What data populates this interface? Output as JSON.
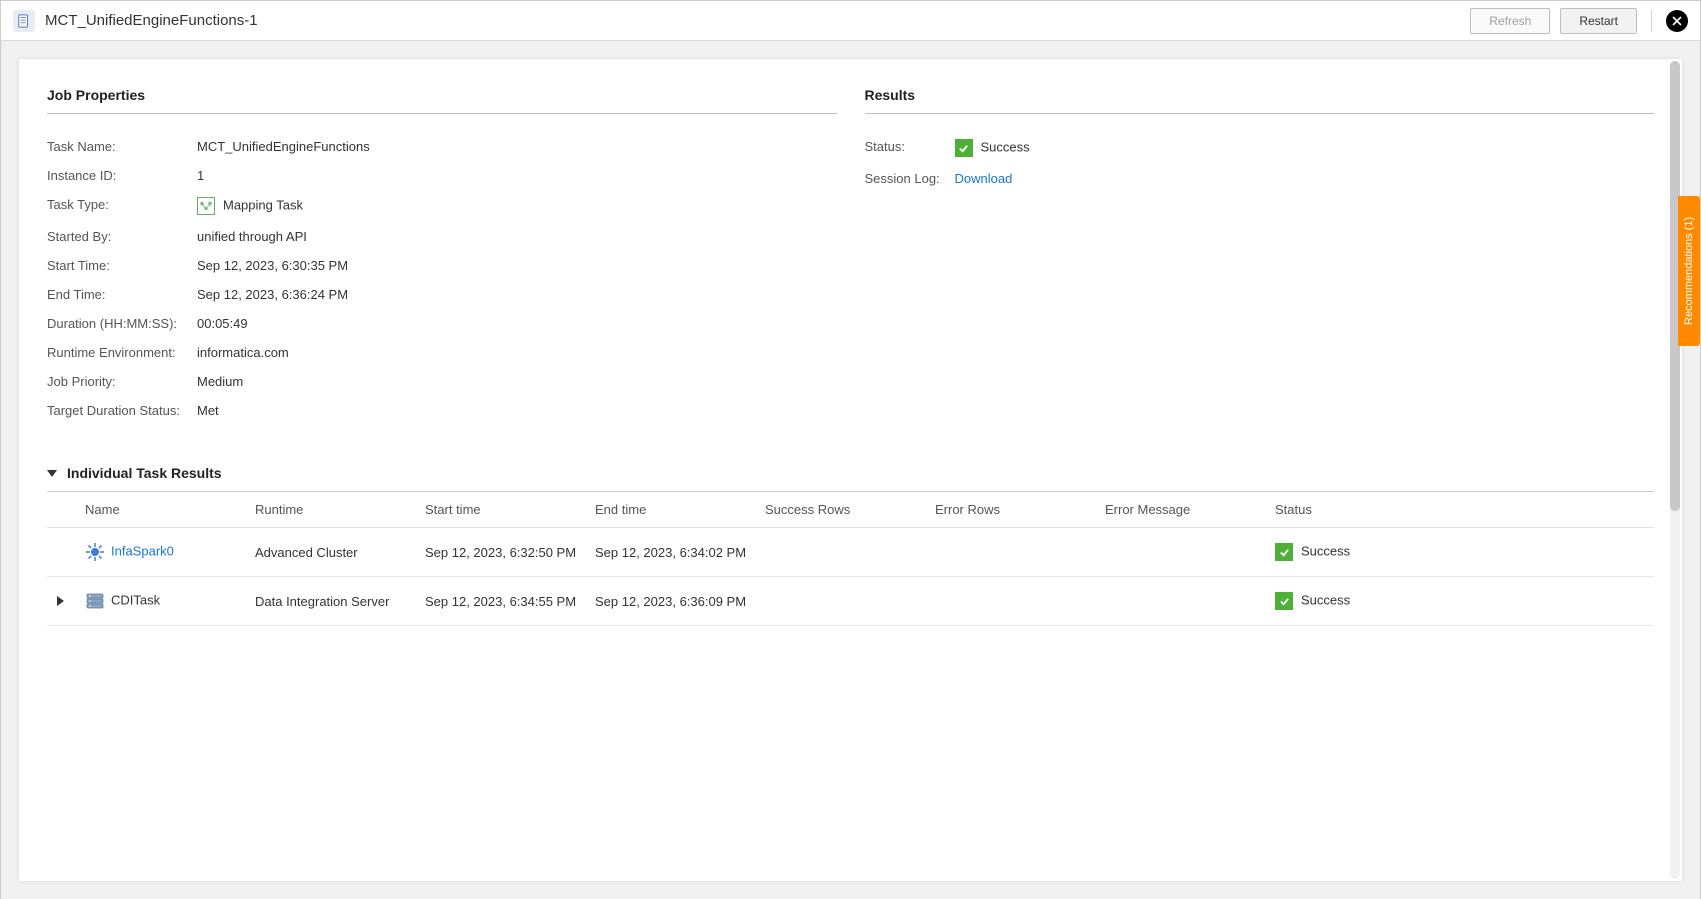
{
  "header": {
    "title": "MCT_UnifiedEngineFunctions-1",
    "refresh_label": "Refresh",
    "restart_label": "Restart"
  },
  "recommendations_label": "Recommendations (1)",
  "job_properties": {
    "title": "Job Properties",
    "rows": {
      "task_name": {
        "label": "Task Name:",
        "value": "MCT_UnifiedEngineFunctions"
      },
      "instance_id": {
        "label": "Instance ID:",
        "value": "1"
      },
      "task_type": {
        "label": "Task Type:",
        "value": "Mapping Task"
      },
      "started_by": {
        "label": "Started By:",
        "value": "unified through API"
      },
      "start_time": {
        "label": "Start Time:",
        "value": "Sep 12, 2023, 6:30:35 PM"
      },
      "end_time": {
        "label": "End Time:",
        "value": "Sep 12, 2023, 6:36:24 PM"
      },
      "duration": {
        "label": "Duration (HH:MM:SS):",
        "value": "00:05:49"
      },
      "runtime_env": {
        "label": "Runtime Environment:",
        "value": "informatica.com"
      },
      "job_priority": {
        "label": "Job Priority:",
        "value": "Medium"
      },
      "target_duration": {
        "label": "Target Duration Status:",
        "value": "Met"
      }
    }
  },
  "results": {
    "title": "Results",
    "status": {
      "label": "Status:",
      "value": "Success"
    },
    "session_log": {
      "label": "Session Log:",
      "link_text": "Download"
    }
  },
  "task_results": {
    "title": "Individual Task Results",
    "columns": {
      "name": "Name",
      "runtime": "Runtime",
      "start_time": "Start time",
      "end_time": "End time",
      "success_rows": "Success Rows",
      "error_rows": "Error Rows",
      "error_message": "Error Message",
      "status": "Status"
    },
    "rows": [
      {
        "expandable": false,
        "icon": "spark-icon",
        "name": "InfaSpark0",
        "name_is_link": true,
        "runtime": "Advanced Cluster",
        "start_time": "Sep 12, 2023, 6:32:50 PM",
        "end_time": "Sep 12, 2023, 6:34:02 PM",
        "success_rows": "",
        "error_rows": "",
        "error_message": "",
        "status": "Success"
      },
      {
        "expandable": true,
        "icon": "server-icon",
        "name": "CDITask",
        "name_is_link": false,
        "runtime": "Data Integration Server",
        "start_time": "Sep 12, 2023, 6:34:55 PM",
        "end_time": "Sep 12, 2023, 6:36:09 PM",
        "success_rows": "",
        "error_rows": "",
        "error_message": "",
        "status": "Success"
      }
    ]
  },
  "colors": {
    "success_green": "#4fb038",
    "link_blue": "#1976d2",
    "rec_orange": "#ff8a00"
  }
}
